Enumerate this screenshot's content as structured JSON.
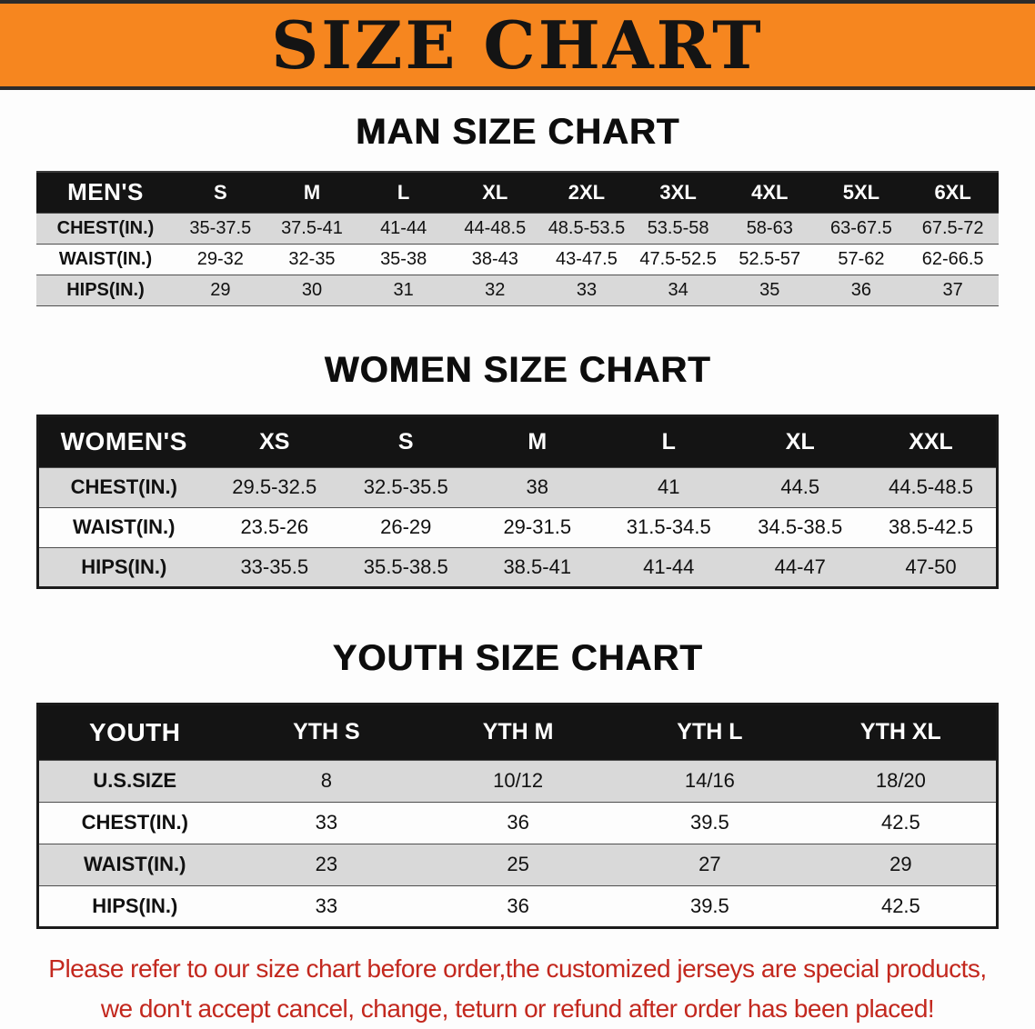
{
  "banner": {
    "title": "SIZE CHART"
  },
  "sections": [
    {
      "heading": "MAN SIZE CHART",
      "table": {
        "header": [
          "MEN'S",
          "S",
          "M",
          "L",
          "XL",
          "2XL",
          "3XL",
          "4XL",
          "5XL",
          "6XL"
        ],
        "rows": [
          [
            "CHEST(IN.)",
            "35-37.5",
            "37.5-41",
            "41-44",
            "44-48.5",
            "48.5-53.5",
            "53.5-58",
            "58-63",
            "63-67.5",
            "67.5-72"
          ],
          [
            "WAIST(IN.)",
            "29-32",
            "32-35",
            "35-38",
            "38-43",
            "43-47.5",
            "47.5-52.5",
            "52.5-57",
            "57-62",
            "62-66.5"
          ],
          [
            "HIPS(IN.)",
            "29",
            "30",
            "31",
            "32",
            "33",
            "34",
            "35",
            "36",
            "37"
          ]
        ]
      }
    },
    {
      "heading": "WOMEN SIZE CHART",
      "table": {
        "header": [
          "WOMEN'S",
          "XS",
          "S",
          "M",
          "L",
          "XL",
          "XXL"
        ],
        "rows": [
          [
            "CHEST(IN.)",
            "29.5-32.5",
            "32.5-35.5",
            "38",
            "41",
            "44.5",
            "44.5-48.5"
          ],
          [
            "WAIST(IN.)",
            "23.5-26",
            "26-29",
            "29-31.5",
            "31.5-34.5",
            "34.5-38.5",
            "38.5-42.5"
          ],
          [
            "HIPS(IN.)",
            "33-35.5",
            "35.5-38.5",
            "38.5-41",
            "41-44",
            "44-47",
            "47-50"
          ]
        ]
      }
    },
    {
      "heading": "YOUTH SIZE CHART",
      "table": {
        "header": [
          "YOUTH",
          "YTH S",
          "YTH M",
          "YTH L",
          "YTH XL"
        ],
        "rows": [
          [
            "U.S.SIZE",
            "8",
            "10/12",
            "14/16",
            "18/20"
          ],
          [
            "CHEST(IN.)",
            "33",
            "36",
            "39.5",
            "42.5"
          ],
          [
            "WAIST(IN.)",
            "23",
            "25",
            "27",
            "29"
          ],
          [
            "HIPS(IN.)",
            "33",
            "36",
            "39.5",
            "42.5"
          ]
        ]
      }
    }
  ],
  "footer": {
    "line1": "Please refer to our size chart before order,the customized jerseys are special products,",
    "line2": "we don't accept cancel, change, teturn or refund after order has been placed!"
  },
  "colors": {
    "banner_bg": "#F6861F",
    "header_bg": "#141414",
    "row_alt": "#D9D9D9",
    "footer_text": "#C3281E"
  }
}
